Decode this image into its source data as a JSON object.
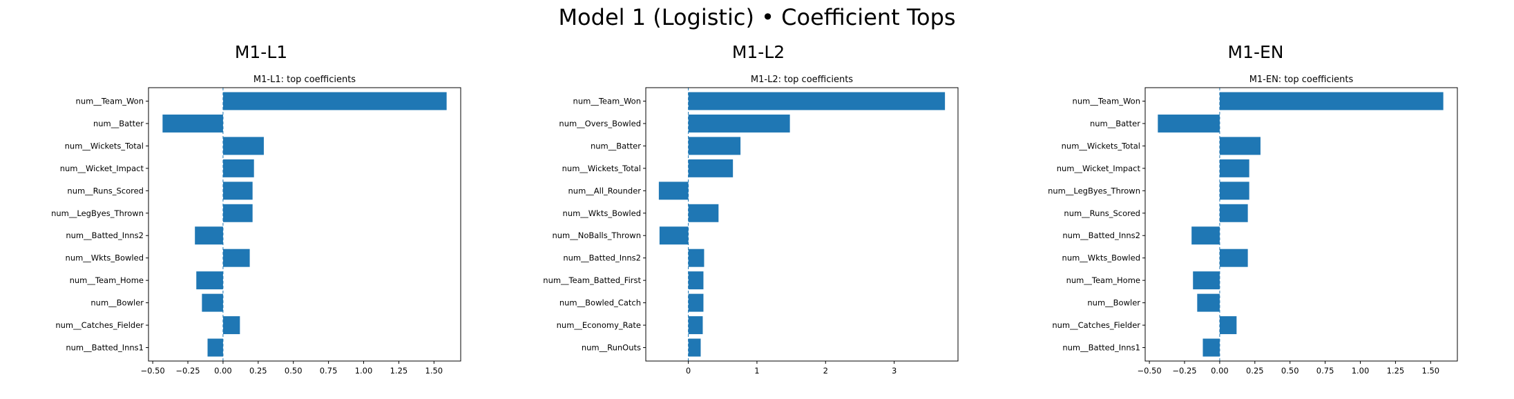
{
  "figure_title": "Model 1 (Logistic) • Coefficient Tops",
  "colors": {
    "bar": "#1f77b4",
    "zero_line": "#1f77b4",
    "axes": "#000000"
  },
  "chart_data": [
    {
      "type": "bar",
      "orientation": "horizontal",
      "panel_title": "M1-L1",
      "title": "M1-L1: top coefficients",
      "xlabel": "",
      "ylabel": "",
      "xlim": [
        -0.53,
        1.69
      ],
      "xticks": [
        -0.5,
        -0.25,
        0.0,
        0.25,
        0.5,
        0.75,
        1.0,
        1.25,
        1.5
      ],
      "xtick_labels": [
        "−0.50",
        "−0.25",
        "0.00",
        "0.25",
        "0.50",
        "0.75",
        "1.00",
        "1.25",
        "1.50"
      ],
      "zero_line": "dashed",
      "grid": false,
      "categories": [
        "num__Team_Won",
        "num__Batter",
        "num__Wickets_Total",
        "num__Wicket_Impact",
        "num__Runs_Scored",
        "num__LegByes_Thrown",
        "num__Batted_Inns2",
        "num__Wkts_Bowled",
        "num__Team_Home",
        "num__Bowler",
        "num__Catches_Fielder",
        "num__Batted_Inns1"
      ],
      "values": [
        1.59,
        -0.43,
        0.29,
        0.22,
        0.21,
        0.21,
        -0.2,
        0.19,
        -0.19,
        -0.15,
        0.12,
        -0.11
      ]
    },
    {
      "type": "bar",
      "orientation": "horizontal",
      "panel_title": "M1-L2",
      "title": "M1-L2: top coefficients",
      "xlabel": "",
      "ylabel": "",
      "xlim": [
        -0.62,
        3.93
      ],
      "xticks": [
        0,
        1,
        2,
        3
      ],
      "xtick_labels": [
        "0",
        "1",
        "2",
        "3"
      ],
      "zero_line": "dashed",
      "grid": false,
      "categories": [
        "num__Team_Won",
        "num__Overs_Bowled",
        "num__Batter",
        "num__Wickets_Total",
        "num__All_Rounder",
        "num__Wkts_Bowled",
        "num__NoBalls_Thrown",
        "num__Batted_Inns2",
        "num__Team_Batted_First",
        "num__Bowled_Catch",
        "num__Economy_Rate",
        "num__RunOuts"
      ],
      "values": [
        3.74,
        1.48,
        0.76,
        0.65,
        -0.43,
        0.44,
        -0.42,
        0.23,
        0.22,
        0.22,
        0.21,
        0.18
      ]
    },
    {
      "type": "bar",
      "orientation": "horizontal",
      "panel_title": "M1-EN",
      "title": "M1-EN: top coefficients",
      "xlabel": "",
      "ylabel": "",
      "xlim": [
        -0.53,
        1.69
      ],
      "xticks": [
        -0.5,
        -0.25,
        0.0,
        0.25,
        0.5,
        0.75,
        1.0,
        1.25,
        1.5
      ],
      "xtick_labels": [
        "−0.50",
        "−0.25",
        "0.00",
        "0.25",
        "0.50",
        "0.75",
        "1.00",
        "1.25",
        "1.50"
      ],
      "zero_line": "dashed",
      "grid": false,
      "categories": [
        "num__Team_Won",
        "num__Batter",
        "num__Wickets_Total",
        "num__Wicket_Impact",
        "num__LegByes_Thrown",
        "num__Runs_Scored",
        "num__Batted_Inns2",
        "num__Wkts_Bowled",
        "num__Team_Home",
        "num__Bowler",
        "num__Catches_Fielder",
        "num__Batted_Inns1"
      ],
      "values": [
        1.59,
        -0.44,
        0.29,
        0.21,
        0.21,
        0.2,
        -0.2,
        0.2,
        -0.19,
        -0.16,
        0.12,
        -0.12
      ]
    }
  ]
}
